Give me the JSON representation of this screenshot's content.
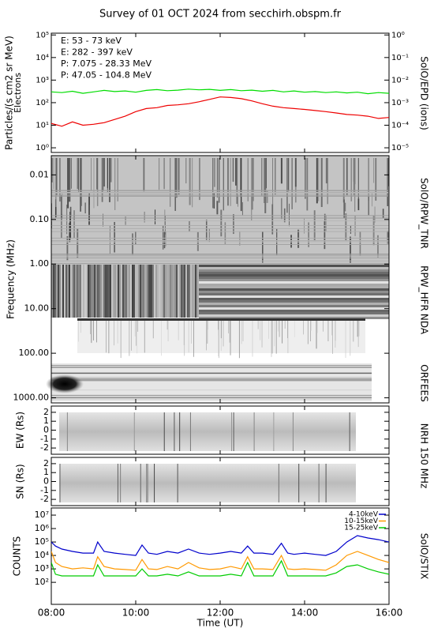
{
  "chart_data": [
    {
      "type": "line",
      "title": "Survey of 01 OCT 2024 from secchirh.obspm.fr",
      "log": true,
      "ylabel": "Particles/(s cm2 sr MeV)",
      "ylabel2": "Electrons",
      "right_label": "SolO/EPD (ions)",
      "ylim": [
        0.62,
        120000
      ],
      "yticks": [
        {
          "value": 1,
          "label": "10⁰"
        },
        {
          "value": 10,
          "label": "10¹"
        },
        {
          "value": 100,
          "label": "10²"
        },
        {
          "value": 1000,
          "label": "10³"
        },
        {
          "value": 10000,
          "label": "10⁴"
        },
        {
          "value": 100000,
          "label": "10⁵"
        }
      ],
      "y2lim": [
        6.2e-06,
        1.2
      ],
      "y2ticks": [
        {
          "value": 1e-05,
          "label": "10⁻⁵"
        },
        {
          "value": 0.0001,
          "label": "10⁻⁴"
        },
        {
          "value": 0.001,
          "label": "10⁻³"
        },
        {
          "value": 0.01,
          "label": "10⁻²"
        },
        {
          "value": 0.1,
          "label": "10⁻¹"
        },
        {
          "value": 1,
          "label": "10⁰"
        }
      ],
      "x": [
        8,
        8.25,
        8.5,
        8.75,
        9,
        9.25,
        9.5,
        9.75,
        10,
        10.25,
        10.5,
        10.75,
        11,
        11.25,
        11.5,
        11.75,
        12,
        12.25,
        12.5,
        12.75,
        13,
        13.25,
        13.5,
        13.75,
        14,
        14.25,
        14.5,
        14.75,
        15,
        15.25,
        15.5,
        15.75,
        16
      ],
      "series": [
        {
          "name": "E: 53 - 73 keV",
          "color": "#00dd00",
          "values": [
            300,
            280,
            320,
            260,
            300,
            350,
            310,
            330,
            290,
            350,
            380,
            340,
            360,
            400,
            370,
            390,
            350,
            380,
            340,
            360,
            320,
            350,
            300,
            330,
            290,
            310,
            280,
            300,
            270,
            290,
            250,
            280,
            260
          ]
        },
        {
          "name": "E: 282 - 397 keV",
          "color": "#ee0000",
          "values": [
            12,
            9,
            14,
            10,
            11,
            13,
            18,
            25,
            40,
            55,
            60,
            75,
            80,
            90,
            110,
            140,
            180,
            170,
            150,
            120,
            90,
            70,
            60,
            55,
            50,
            45,
            40,
            35,
            30,
            28,
            25,
            20,
            22
          ]
        },
        {
          "name": "P: 7.075 - 28.33 MeV",
          "color": "#000000",
          "values": [
            null,
            null,
            null,
            null,
            null,
            null,
            null,
            null,
            null,
            null,
            null,
            null,
            null,
            null,
            null,
            null,
            null,
            null,
            null,
            null,
            null,
            null,
            null,
            null,
            null,
            null,
            null,
            null,
            null,
            null,
            null,
            null,
            null
          ]
        },
        {
          "name": "P: 47.05 - 104.8 MeV",
          "color": "#0000cc",
          "values": [
            null,
            null,
            null,
            null,
            null,
            null,
            null,
            null,
            null,
            null,
            null,
            null,
            null,
            null,
            null,
            null,
            null,
            null,
            null,
            null,
            null,
            null,
            null,
            null,
            null,
            null,
            null,
            null,
            null,
            null,
            null,
            null,
            null
          ]
        }
      ]
    },
    {
      "type": "spectrogram",
      "log": true,
      "inverted": true,
      "ylabel": "Frequency (MHz)",
      "ylim": [
        0.0037,
        1300
      ],
      "yticks": [
        0.01,
        {
          "value": 0.1,
          "label": "0.10"
        },
        {
          "value": 1,
          "label": "1.00"
        },
        {
          "value": 10,
          "label": "10.00"
        },
        {
          "value": 100,
          "label": "100.00"
        },
        {
          "value": 1000,
          "label": "1000.00"
        }
      ],
      "instruments": [
        "SolO/RPW_TNR",
        "RPW_HFR",
        "NDA",
        "ORFEES"
      ]
    },
    {
      "type": "image",
      "ylabel": "EW (Rs)",
      "right_label": "NRH 150 MHz",
      "ylim": [
        -2.7,
        2.7
      ],
      "yticks": [
        -2,
        -1,
        0,
        1,
        2
      ]
    },
    {
      "type": "image",
      "ylabel": "SN (Rs)",
      "ylim": [
        -2.7,
        2.7
      ],
      "yticks": [
        -2,
        -1,
        0,
        1,
        2
      ]
    },
    {
      "type": "line",
      "log": true,
      "ylabel": "COUNTS",
      "right_label": "SolO/STIX",
      "xlabel": "Time (UT)",
      "ylim": [
        2.3,
        34000000
      ],
      "yticks": [
        {
          "value": 100,
          "label": "10²"
        },
        {
          "value": 1000,
          "label": "10³"
        },
        {
          "value": 10000,
          "label": "10⁴"
        },
        {
          "value": 100000,
          "label": "10⁵"
        },
        {
          "value": 1000000,
          "label": "10⁶"
        },
        {
          "value": 10000000,
          "label": "10⁷"
        }
      ],
      "xlim": [
        8,
        16
      ],
      "xticks": [
        {
          "value": 8,
          "label": "08:00"
        },
        {
          "value": 10,
          "label": "10:00"
        },
        {
          "value": 12,
          "label": "12:00"
        },
        {
          "value": 14,
          "label": "14:00"
        },
        {
          "value": 16,
          "label": "16:00"
        }
      ],
      "x": [
        8,
        8.1,
        8.25,
        8.5,
        8.75,
        9,
        9.1,
        9.25,
        9.5,
        9.75,
        10,
        10.15,
        10.3,
        10.5,
        10.75,
        11,
        11.25,
        11.5,
        11.75,
        12,
        12.25,
        12.5,
        12.65,
        12.8,
        13,
        13.25,
        13.45,
        13.6,
        13.75,
        14,
        14.25,
        14.5,
        14.75,
        15,
        15.25,
        15.5,
        15.75,
        16
      ],
      "series": [
        {
          "name": "4-10keV",
          "color": "#0000cc",
          "values": [
            100000,
            50000,
            30000,
            20000,
            15000,
            15000,
            100000,
            20000,
            15000,
            12000,
            10000,
            60000,
            15000,
            12000,
            20000,
            15000,
            30000,
            15000,
            12000,
            15000,
            20000,
            15000,
            50000,
            15000,
            15000,
            12000,
            80000,
            15000,
            12000,
            15000,
            12000,
            10000,
            20000,
            100000,
            300000,
            200000,
            150000,
            100000
          ]
        },
        {
          "name": "10-15keV",
          "color": "#ff9900",
          "values": [
            20000,
            3000,
            1500,
            1000,
            1200,
            1000,
            8000,
            1500,
            1000,
            900,
            800,
            5000,
            1000,
            900,
            1500,
            1000,
            3000,
            1200,
            900,
            1000,
            1500,
            1000,
            8000,
            1000,
            1000,
            900,
            10000,
            1000,
            900,
            1000,
            900,
            800,
            2000,
            10000,
            20000,
            10000,
            5000,
            3000
          ]
        },
        {
          "name": "15-25keV",
          "color": "#00cc00",
          "values": [
            3000,
            400,
            300,
            300,
            300,
            300,
            2000,
            300,
            300,
            300,
            300,
            1000,
            300,
            300,
            400,
            300,
            600,
            300,
            300,
            300,
            400,
            300,
            3000,
            300,
            300,
            300,
            4000,
            300,
            300,
            300,
            300,
            300,
            500,
            1500,
            2000,
            1000,
            600,
            400
          ]
        }
      ]
    }
  ]
}
